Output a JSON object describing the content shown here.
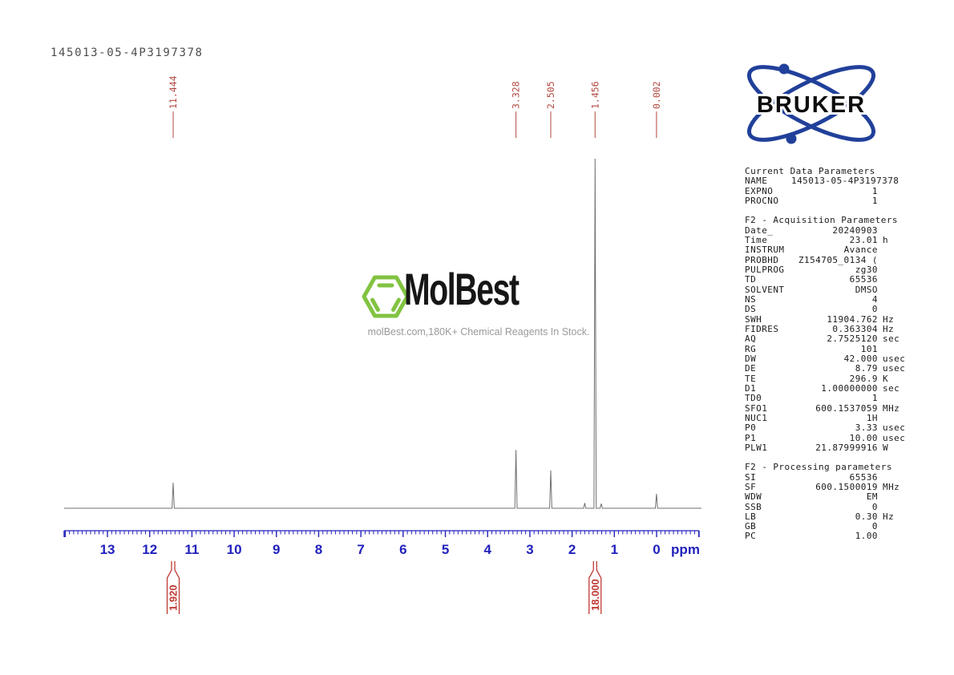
{
  "header": {
    "title": "145013-05-4P3197378"
  },
  "bruker": {
    "label": "BRUKER"
  },
  "watermark": {
    "brand": "MolBest",
    "tagline": "molBest.com,180K+ Chemical Reagents In Stock.",
    "logo_icon": "benzene-hexagon-icon"
  },
  "colors": {
    "axis": "#2121bd",
    "peakLabel": "#b2483f",
    "integral": "#bf3a32",
    "spectrum": "#6f6f6f",
    "brukerBlue": "#21409a",
    "molbestGreen": "#82c341",
    "taglineGray": "#9a9a9a",
    "titleGray": "#4d4d4d"
  },
  "chart_data": {
    "type": "line",
    "subtype": "1H-NMR-spectrum",
    "title": "145013-05-4P3197378",
    "xlabel": "ppm",
    "ylabel": "",
    "grid": false,
    "x_axis": {
      "min": -1.0,
      "max": 14.04,
      "reversed": true,
      "major_tick_step": 1,
      "minor_tick_step": 0.1,
      "tick_labels": [
        "13",
        "12",
        "11",
        "10",
        "9",
        "8",
        "7",
        "6",
        "5",
        "4",
        "3",
        "2",
        "1",
        "0"
      ]
    },
    "peaks": [
      {
        "ppm": 11.444,
        "intensity": 0.073
      },
      {
        "ppm": 3.328,
        "intensity": 0.167
      },
      {
        "ppm": 2.505,
        "intensity": 0.108
      },
      {
        "ppm": 1.7,
        "intensity": 0.015
      },
      {
        "ppm": 1.456,
        "intensity": 1.0
      },
      {
        "ppm": 1.31,
        "intensity": 0.013
      },
      {
        "ppm": 0.002,
        "intensity": 0.041
      }
    ],
    "peak_labels": [
      "11.444",
      "3.328",
      "2.505",
      "1.456",
      "0.002"
    ],
    "integrals": [
      {
        "label": "1.920",
        "ppm": 11.444
      },
      {
        "label": "18.000",
        "ppm": 1.456
      }
    ]
  },
  "params": {
    "sections": [
      {
        "title": "Current Data Parameters",
        "rows": [
          [
            "NAME",
            "145013-05-4P3197378",
            ""
          ],
          [
            "EXPNO",
            "1",
            ""
          ],
          [
            "PROCNO",
            "1",
            ""
          ]
        ]
      },
      {
        "title": "F2 - Acquisition Parameters",
        "rows": [
          [
            "Date_",
            "20240903",
            ""
          ],
          [
            "Time",
            "23.01",
            "h"
          ],
          [
            "INSTRUM",
            "Avance",
            ""
          ],
          [
            "PROBHD",
            "Z154705_0134 (",
            ""
          ],
          [
            "PULPROG",
            "zg30",
            ""
          ],
          [
            "TD",
            "65536",
            ""
          ],
          [
            "SOLVENT",
            "DMSO",
            ""
          ],
          [
            "NS",
            "4",
            ""
          ],
          [
            "DS",
            "0",
            ""
          ],
          [
            "SWH",
            "11904.762",
            "Hz"
          ],
          [
            "FIDRES",
            "0.363304",
            "Hz"
          ],
          [
            "AQ",
            "2.7525120",
            "sec"
          ],
          [
            "RG",
            "101",
            ""
          ],
          [
            "DW",
            "42.000",
            "usec"
          ],
          [
            "DE",
            "8.79",
            "usec"
          ],
          [
            "TE",
            "296.9",
            "K"
          ],
          [
            "D1",
            "1.00000000",
            "sec"
          ],
          [
            "TD0",
            "1",
            ""
          ],
          [
            "SFO1",
            "600.1537059",
            "MHz"
          ],
          [
            "NUC1",
            "1H",
            ""
          ],
          [
            "P0",
            "3.33",
            "usec"
          ],
          [
            "P1",
            "10.00",
            "usec"
          ],
          [
            "PLW1",
            "21.87999916",
            "W"
          ]
        ]
      },
      {
        "title": "F2 - Processing parameters",
        "rows": [
          [
            "SI",
            "65536",
            ""
          ],
          [
            "SF",
            "600.1500019",
            "MHz"
          ],
          [
            "WDW",
            "EM",
            ""
          ],
          [
            "SSB",
            "0",
            ""
          ],
          [
            "LB",
            "0.30",
            "Hz"
          ],
          [
            "GB",
            "0",
            ""
          ],
          [
            "PC",
            "1.00",
            ""
          ]
        ]
      }
    ]
  }
}
